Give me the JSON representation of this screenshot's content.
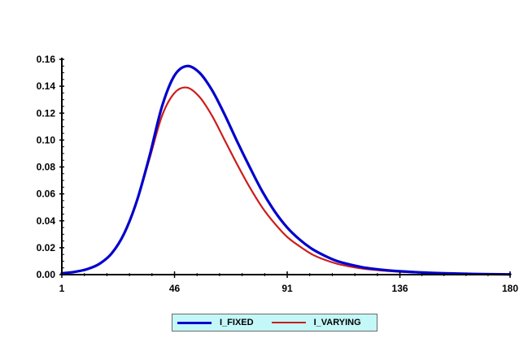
{
  "chart_data": {
    "type": "line",
    "title": "",
    "xlabel": "",
    "ylabel": "",
    "xlim": [
      1,
      180
    ],
    "ylim": [
      0,
      0.16
    ],
    "x_ticks": [
      "1",
      "46",
      "91",
      "136",
      "180"
    ],
    "y_ticks": [
      "0.00",
      "0.02",
      "0.04",
      "0.06",
      "0.08",
      "0.10",
      "0.12",
      "0.14",
      "0.16"
    ],
    "grid": false,
    "legend_position": "bottom",
    "series": [
      {
        "name": "I_FIXED",
        "color": "#0000cc",
        "x": [
          1,
          6,
          11,
          16,
          21,
          26,
          31,
          36,
          41,
          46,
          51,
          56,
          61,
          66,
          71,
          76,
          81,
          86,
          91,
          96,
          101,
          106,
          111,
          116,
          121,
          126,
          131,
          136,
          146,
          156,
          166,
          180
        ],
        "y": [
          0.001,
          0.002,
          0.004,
          0.008,
          0.016,
          0.031,
          0.055,
          0.088,
          0.125,
          0.148,
          0.155,
          0.15,
          0.137,
          0.119,
          0.099,
          0.08,
          0.062,
          0.047,
          0.035,
          0.026,
          0.019,
          0.014,
          0.01,
          0.0075,
          0.0055,
          0.0042,
          0.0032,
          0.0025,
          0.0015,
          0.0009,
          0.0005,
          0.0002
        ]
      },
      {
        "name": "I_VARYING",
        "color": "#cc1c1c",
        "x": [
          1,
          6,
          11,
          16,
          21,
          26,
          31,
          36,
          41,
          46,
          51,
          56,
          61,
          66,
          71,
          76,
          81,
          86,
          91,
          96,
          101,
          106,
          111,
          116,
          121,
          126,
          131,
          136,
          146,
          156,
          166,
          180
        ],
        "y": [
          0.001,
          0.002,
          0.004,
          0.008,
          0.016,
          0.031,
          0.055,
          0.086,
          0.118,
          0.135,
          0.139,
          0.132,
          0.118,
          0.1,
          0.082,
          0.065,
          0.05,
          0.038,
          0.028,
          0.021,
          0.015,
          0.011,
          0.008,
          0.006,
          0.0045,
          0.0035,
          0.0027,
          0.0021,
          0.0013,
          0.0008,
          0.0004,
          0.0002
        ]
      }
    ]
  }
}
